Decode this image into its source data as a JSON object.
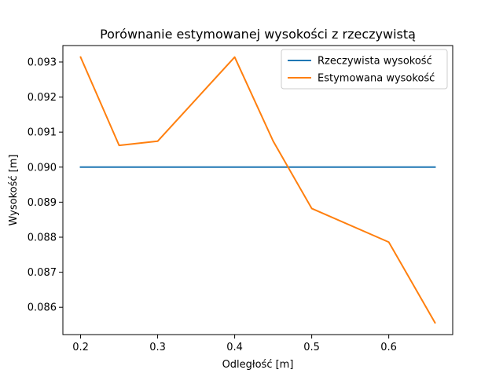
{
  "chart_data": {
    "type": "line",
    "title": "Porównanie estymowanej wysokości z rzeczywistą",
    "xlabel": "Odległość [m]",
    "ylabel": "Wysokość [m]",
    "xlim": [
      0.177,
      0.683
    ],
    "ylim": [
      0.08522,
      0.09347
    ],
    "xticks": [
      0.2,
      0.3,
      0.4,
      0.5,
      0.6
    ],
    "xtick_labels": [
      "0.2",
      "0.3",
      "0.4",
      "0.5",
      "0.6"
    ],
    "yticks": [
      0.086,
      0.087,
      0.088,
      0.089,
      0.09,
      0.091,
      0.092,
      0.093
    ],
    "ytick_labels": [
      "0.086",
      "0.087",
      "0.088",
      "0.089",
      "0.090",
      "0.091",
      "0.092",
      "0.093"
    ],
    "grid": false,
    "legend_position": "top-right",
    "series": [
      {
        "name": "Rzeczywista wysokość",
        "color": "#1f77b4",
        "x": [
          0.2,
          0.66
        ],
        "y": [
          0.09,
          0.09
        ]
      },
      {
        "name": "Estymowana wysokość",
        "color": "#ff7f0e",
        "x": [
          0.2,
          0.25,
          0.3,
          0.4,
          0.45,
          0.5,
          0.6,
          0.66
        ],
        "y": [
          0.09314,
          0.09062,
          0.09074,
          0.09314,
          0.09074,
          0.08882,
          0.08786,
          0.08556
        ]
      }
    ]
  }
}
